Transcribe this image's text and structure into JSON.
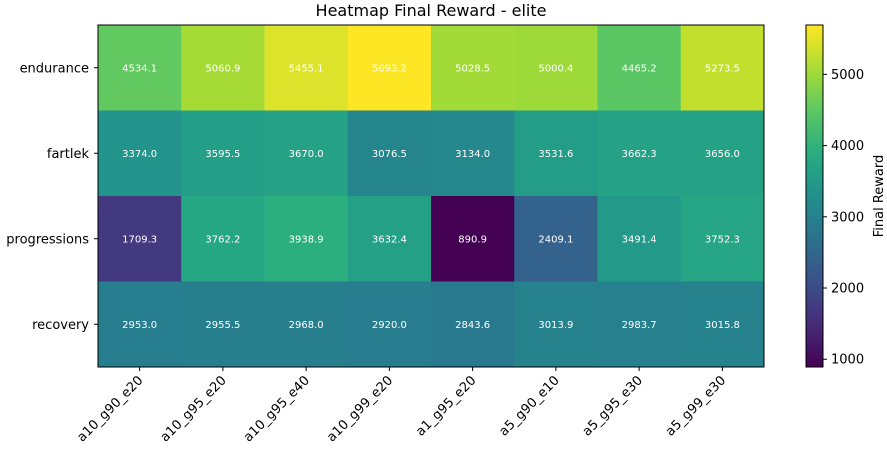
{
  "chart_data": {
    "type": "heatmap",
    "title": "Heatmap Final Reward - elite",
    "x_categories": [
      "a10_g90_e20",
      "a10_g95_e20",
      "a10_g95_e40",
      "a10_g99_e20",
      "a1_g95_e20",
      "a5_g90_e10",
      "a5_g95_e30",
      "a5_g99_e30"
    ],
    "y_categories": [
      "endurance",
      "fartlek",
      "progressions",
      "recovery"
    ],
    "values": [
      [
        4534.1,
        5060.9,
        5455.1,
        5693.2,
        5028.5,
        5000.4,
        4465.2,
        5273.5
      ],
      [
        3374.0,
        3595.5,
        3670.0,
        3076.5,
        3134.0,
        3531.6,
        3662.3,
        3656.0
      ],
      [
        1709.3,
        3762.2,
        3938.9,
        3632.4,
        890.9,
        2409.1,
        3491.4,
        3752.3
      ],
      [
        2953.0,
        2955.5,
        2968.0,
        2920.0,
        2843.6,
        3013.9,
        2983.7,
        3015.8
      ]
    ],
    "cell_labels": [
      [
        "4534.1",
        "5060.9",
        "5455.1",
        "5693.2",
        "5028.5",
        "5000.4",
        "4465.2",
        "5273.5"
      ],
      [
        "3374.0",
        "3595.5",
        "3670.0",
        "3076.5",
        "3134.0",
        "3531.6",
        "3662.3",
        "3656.0"
      ],
      [
        "1709.3",
        "3762.2",
        "3938.9",
        "3632.4",
        "890.9",
        "2409.1",
        "3491.4",
        "3752.3"
      ],
      [
        "2953.0",
        "2955.5",
        "2968.0",
        "2920.0",
        "2843.6",
        "3013.9",
        "2983.7",
        "3015.8"
      ]
    ],
    "colormap": "viridis",
    "vmin": 890.9,
    "vmax": 5693.2,
    "colorbar": {
      "label": "Final Reward",
      "ticks": [
        1000,
        2000,
        3000,
        4000,
        5000
      ],
      "tick_labels": [
        "1000",
        "2000",
        "3000",
        "4000",
        "5000"
      ]
    }
  }
}
